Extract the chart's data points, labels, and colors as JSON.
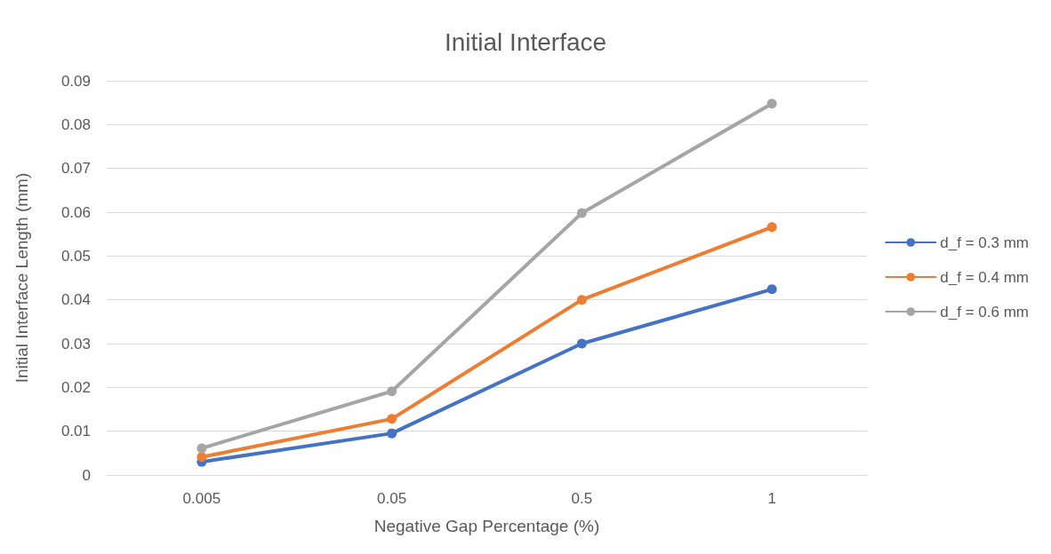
{
  "chart_data": {
    "type": "line",
    "title": "Initial Interface",
    "xlabel": "Negative Gap Percentage (%)",
    "ylabel": "Initial Interface Length (mm)",
    "categories": [
      "0.005",
      "0.05",
      "0.5",
      "1"
    ],
    "series": [
      {
        "name": "d_f = 0.3 mm",
        "color": "#4472c4",
        "values": [
          0.003,
          0.0095,
          0.03,
          0.0424
        ]
      },
      {
        "name": "d_f = 0.4 mm",
        "color": "#ed7d31",
        "values": [
          0.0041,
          0.0128,
          0.04,
          0.0566
        ]
      },
      {
        "name": "d_f = 0.6 mm",
        "color": "#a5a5a5",
        "values": [
          0.0061,
          0.0191,
          0.0598,
          0.0848
        ]
      }
    ],
    "ylim": [
      0,
      0.09
    ],
    "yticks": [
      0,
      0.01,
      0.02,
      0.03,
      0.04,
      0.05,
      0.06,
      0.07,
      0.08,
      0.09
    ],
    "grid": "y",
    "legend": "right",
    "marker": "circle",
    "line_style": "solid"
  }
}
